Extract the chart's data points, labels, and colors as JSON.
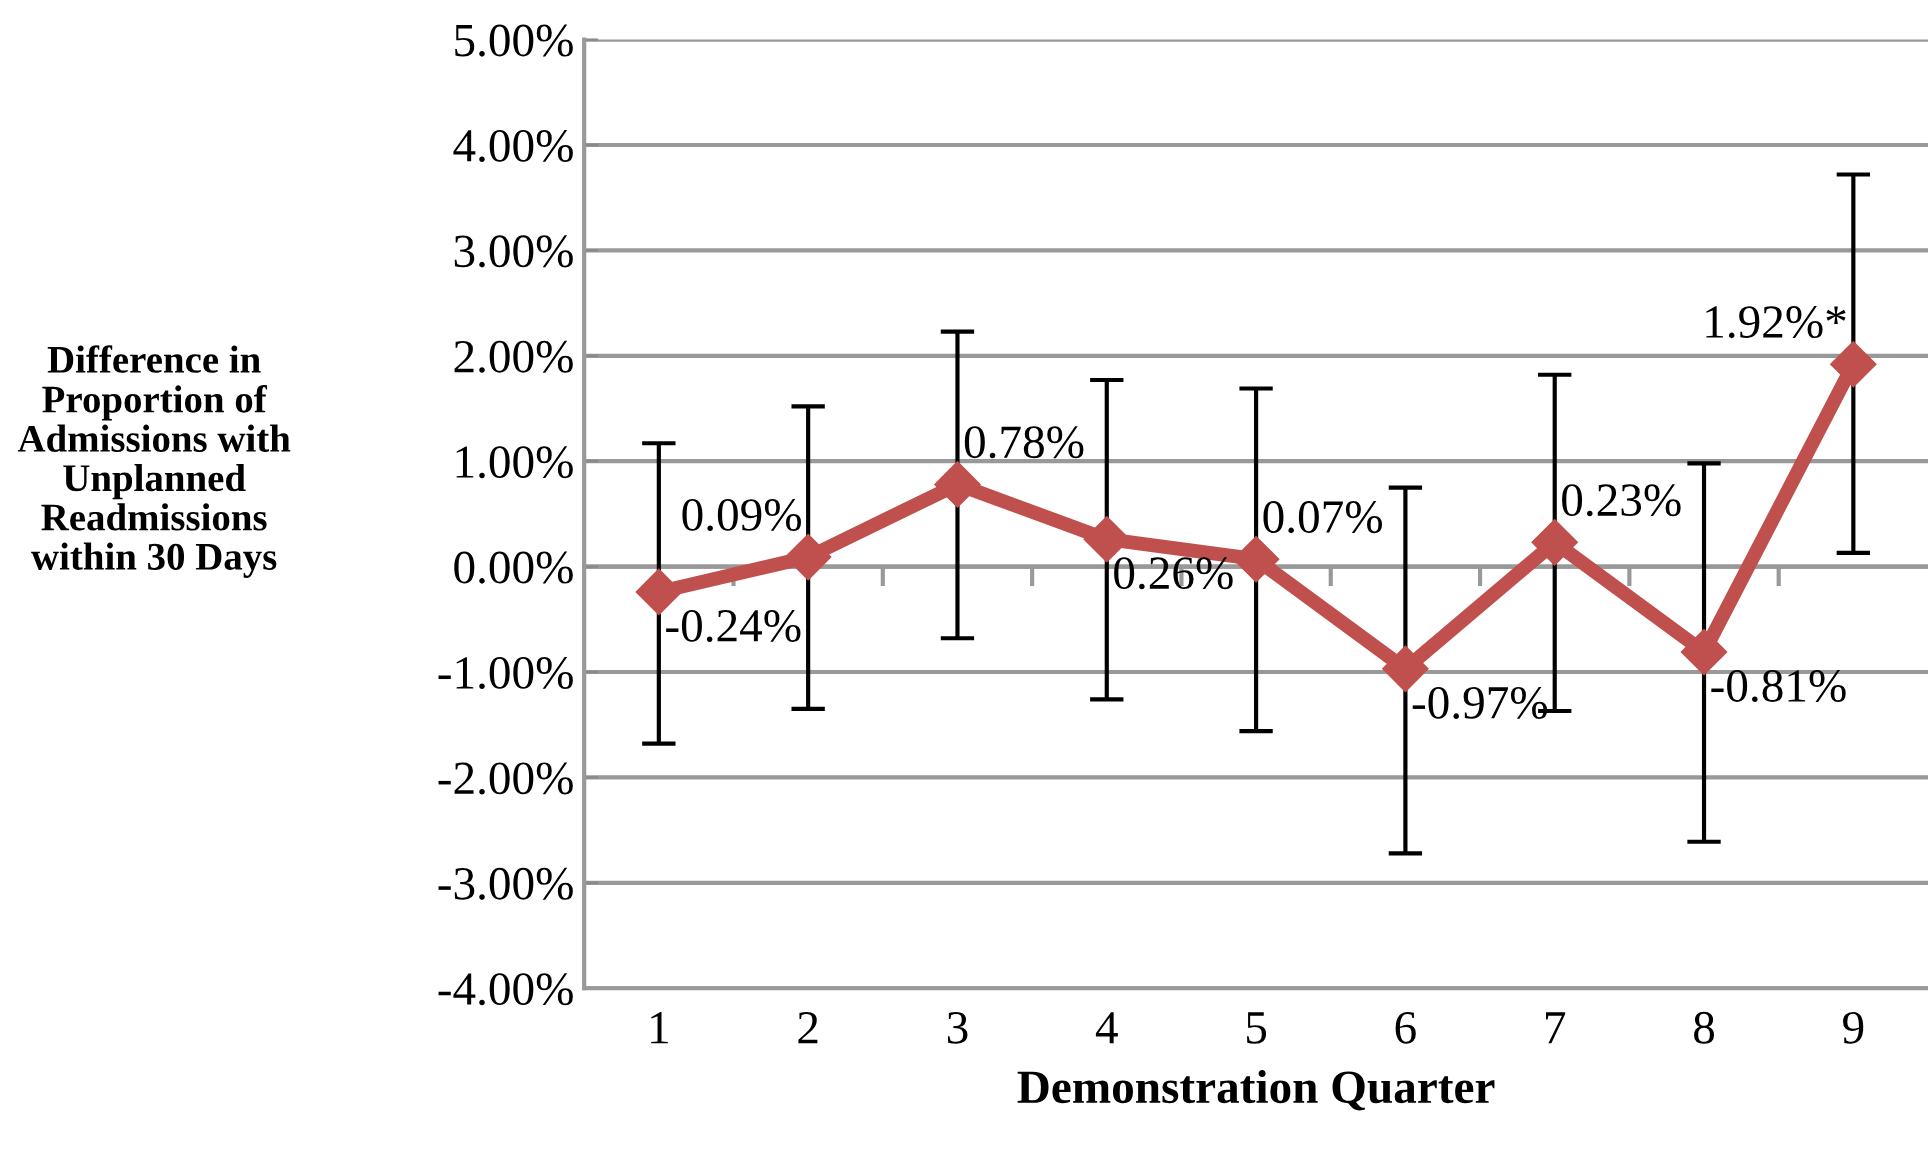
{
  "chart_data": {
    "type": "line",
    "xlabel": "Demonstration Quarter",
    "ylabel": "Difference in\nProportion of\nAdmissions with\nUnplanned\nReadmissions\nwithin 30 Days",
    "categories": [
      "1",
      "2",
      "3",
      "4",
      "5",
      "6",
      "7",
      "8",
      "9"
    ],
    "series": [
      {
        "color": "#c0504d",
        "values": [
          -0.24,
          0.09,
          0.78,
          0.26,
          0.07,
          -0.97,
          0.23,
          -0.81,
          1.92
        ],
        "value_labels": [
          "-0.24%",
          "0.09%",
          "0.78%",
          "0.26%",
          "0.07%",
          "-0.97%",
          "0.23%",
          "-0.81%",
          "1.92%*"
        ],
        "errors": [
          [
            -1.68,
            1.17
          ],
          [
            -1.35,
            1.52
          ],
          [
            -0.68,
            2.23
          ],
          [
            -1.26,
            1.77
          ],
          [
            -1.56,
            1.69
          ],
          [
            -2.72,
            0.75
          ],
          [
            -1.37,
            1.82
          ],
          [
            -2.61,
            0.98
          ],
          [
            0.13,
            3.72
          ]
        ]
      }
    ],
    "ylim": [
      -4,
      5
    ],
    "yticks": [
      {
        "value": -4,
        "label": "-4.00%"
      },
      {
        "value": -3,
        "label": "-3.00%"
      },
      {
        "value": -2,
        "label": "-2.00%"
      },
      {
        "value": -1,
        "label": "-1.00%"
      },
      {
        "value": 0,
        "label": "0.00%"
      },
      {
        "value": 1,
        "label": "1.00%"
      },
      {
        "value": 2,
        "label": "2.00%"
      },
      {
        "value": 3,
        "label": "3.00%"
      },
      {
        "value": 4,
        "label": "4.00%"
      },
      {
        "value": 5,
        "label": "5.00%"
      }
    ],
    "grid": "y",
    "marker": "diamond",
    "line_style": "solid",
    "legend": false
  }
}
